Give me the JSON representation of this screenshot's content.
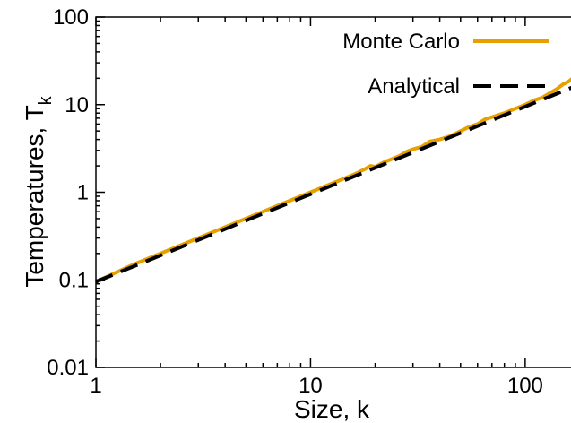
{
  "chart_data": {
    "type": "line",
    "xlabel": "Size, k",
    "ylabel_main": "Temperatures, T",
    "ylabel_sub": "k",
    "xscale": "log",
    "yscale": "log",
    "xlim": [
      1,
      180
    ],
    "ylim": [
      0.01,
      100
    ],
    "xticks": [
      {
        "value": 1,
        "label": "1"
      },
      {
        "value": 10,
        "label": "10"
      },
      {
        "value": 100,
        "label": "100"
      }
    ],
    "yticks": [
      {
        "value": 0.01,
        "label": "0.01"
      },
      {
        "value": 0.1,
        "label": "0.1"
      },
      {
        "value": 1,
        "label": "1"
      },
      {
        "value": 10,
        "label": "10"
      },
      {
        "value": 100,
        "label": "100"
      }
    ],
    "grid": false,
    "legend_position": "top-right",
    "series": [
      {
        "name": "Monte Carlo",
        "color": "#e6a000",
        "style": "solid",
        "x": [
          1,
          1.5,
          2,
          3,
          4,
          5,
          6,
          8,
          10,
          13,
          16,
          18,
          19,
          20,
          22,
          24,
          26,
          28,
          30,
          33,
          36,
          40,
          45,
          50,
          55,
          60,
          65,
          70,
          80,
          90,
          100,
          110,
          120,
          130,
          140,
          150,
          160,
          170,
          180
        ],
        "y": [
          0.095,
          0.15,
          0.2,
          0.3,
          0.4,
          0.5,
          0.6,
          0.8,
          1.0,
          1.3,
          1.6,
          1.85,
          2.0,
          1.95,
          2.2,
          2.4,
          2.6,
          2.9,
          3.1,
          3.3,
          3.8,
          4.0,
          4.4,
          5.0,
          5.6,
          6.0,
          6.8,
          7.2,
          8.0,
          9.0,
          10.0,
          11.2,
          12.0,
          13.5,
          15.0,
          17.0,
          18.5,
          21.0,
          24.0
        ]
      },
      {
        "name": "Analytical",
        "color": "#000000",
        "style": "dashed",
        "x": [
          1,
          180
        ],
        "y": [
          0.095,
          17.1
        ]
      }
    ]
  }
}
